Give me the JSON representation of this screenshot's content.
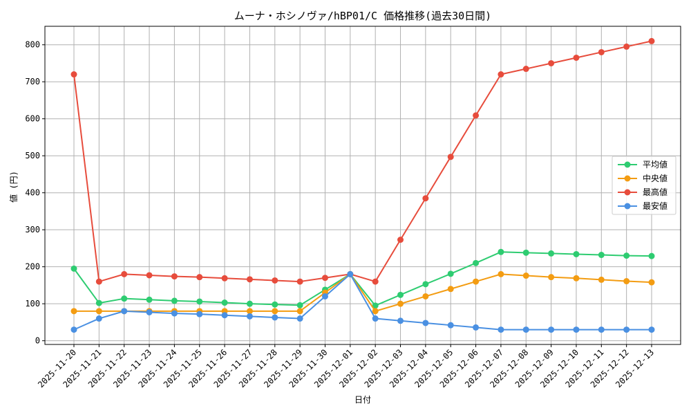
{
  "chart_data": {
    "type": "line",
    "title": "ムーナ・ホシノヴァ/hBP01/C 価格推移(過去30日間)",
    "xlabel": "日付",
    "ylabel": "値 (円)",
    "ylim": [
      -10,
      850
    ],
    "yticks": [
      0,
      100,
      200,
      300,
      400,
      500,
      600,
      700,
      800
    ],
    "grid": true,
    "legend_position": "center-right",
    "categories": [
      "2025-11-20",
      "2025-11-21",
      "2025-11-22",
      "2025-11-23",
      "2025-11-24",
      "2025-11-25",
      "2025-11-26",
      "2025-11-27",
      "2025-11-28",
      "2025-11-29",
      "2025-11-30",
      "2025-12-01",
      "2025-12-02",
      "2025-12-03",
      "2025-12-04",
      "2025-12-05",
      "2025-12-06",
      "2025-12-07",
      "2025-12-08",
      "2025-12-09",
      "2025-12-10",
      "2025-12-11",
      "2025-12-12",
      "2025-12-13"
    ],
    "series": [
      {
        "name": "平均値",
        "color": "#2ecc71",
        "values": [
          195,
          102,
          114,
          111,
          108,
          106,
          103,
          100,
          98,
          96,
          138,
          180,
          95,
          124,
          153,
          181,
          210,
          240,
          238,
          236,
          234,
          232,
          230,
          229
        ]
      },
      {
        "name": "中央値",
        "color": "#f39c12",
        "values": [
          80,
          80,
          80,
          80,
          80,
          80,
          80,
          80,
          80,
          80,
          130,
          180,
          80,
          100,
          120,
          140,
          160,
          180,
          176,
          172,
          169,
          165,
          161,
          158
        ]
      },
      {
        "name": "最高値",
        "color": "#e74c3c",
        "values": [
          720,
          160,
          180,
          177,
          174,
          172,
          169,
          166,
          163,
          160,
          170,
          180,
          160,
          273,
          385,
          497,
          609,
          720,
          735,
          750,
          765,
          780,
          795,
          810
        ]
      },
      {
        "name": "最安値",
        "color": "#4a90e2",
        "values": [
          30,
          60,
          80,
          77,
          74,
          72,
          69,
          66,
          63,
          60,
          120,
          180,
          60,
          54,
          48,
          42,
          36,
          30,
          30,
          30,
          30,
          30,
          30,
          30
        ]
      }
    ]
  }
}
